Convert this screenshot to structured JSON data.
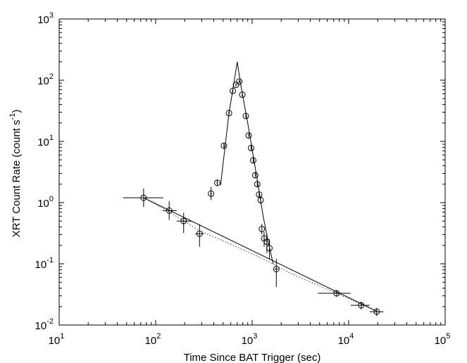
{
  "chart_data": {
    "type": "scatter",
    "title": "",
    "xlabel": "Time Since BAT Trigger (sec)",
    "ylabel": "XRT Count Rate (count s",
    "ylabel_sup": "-1",
    "ylabel_close": ")",
    "xscale": "log",
    "yscale": "log",
    "xlim": [
      10,
      100000
    ],
    "ylim": [
      0.01,
      1000
    ],
    "grid": false,
    "legend": "none",
    "x_ticks": [
      {
        "value": 10,
        "base": "10",
        "exp": "1"
      },
      {
        "value": 100,
        "base": "10",
        "exp": "2"
      },
      {
        "value": 1000,
        "base": "10",
        "exp": "3"
      },
      {
        "value": 10000,
        "base": "10",
        "exp": "4"
      },
      {
        "value": 100000,
        "base": "10",
        "exp": "5"
      }
    ],
    "y_ticks": [
      {
        "value": 0.01,
        "base": "10",
        "exp": "-2"
      },
      {
        "value": 0.1,
        "base": "10",
        "exp": "-1"
      },
      {
        "value": 1,
        "base": "10",
        "exp": "0"
      },
      {
        "value": 10,
        "base": "10",
        "exp": "1"
      },
      {
        "value": 100,
        "base": "10",
        "exp": "2"
      },
      {
        "value": 1000,
        "base": "10",
        "exp": "3"
      }
    ],
    "series": [
      {
        "marker": "circle-plus",
        "points": [
          {
            "x": 75,
            "y": 1.2,
            "xerr": [
              46,
              120
            ],
            "yerr": [
              0.85,
              1.7
            ]
          },
          {
            "x": 138,
            "y": 0.74,
            "xerr": [
              118,
              165
            ],
            "yerr": [
              0.52,
              1.05
            ]
          },
          {
            "x": 195,
            "y": 0.5,
            "xerr": [
              165,
              235
            ],
            "yerr": [
              0.32,
              0.68
            ]
          },
          {
            "x": 285,
            "y": 0.31,
            "xerr": [
              258,
              315
            ],
            "yerr": [
              0.19,
              0.44
            ]
          },
          {
            "x": 1780,
            "y": 0.082,
            "xerr": [
              1700,
              1870
            ],
            "yerr": [
              0.042,
              0.12
            ]
          },
          {
            "x": 7500,
            "y": 0.033,
            "xerr": [
              4800,
              10500
            ],
            "yerr": [
              0.029,
              0.037
            ]
          },
          {
            "x": 13500,
            "y": 0.021,
            "xerr": [
              10500,
              16500
            ],
            "yerr": [
              0.018,
              0.024
            ]
          },
          {
            "x": 19500,
            "y": 0.0165,
            "xerr": [
              16500,
              23000
            ],
            "yerr": [
              0.014,
              0.019
            ]
          }
        ]
      },
      {
        "marker": "circle-plus",
        "points": [
          {
            "x": 375,
            "y": 1.4,
            "xerr": [
              365,
              385
            ],
            "yerr": [
              1.1,
              1.8
            ]
          },
          {
            "x": 435,
            "y": 2.1,
            "xerr": [
              428,
              442
            ],
            "yerr": [
              1.9,
              2.4
            ]
          },
          {
            "x": 510,
            "y": 8.5,
            "xerr": [
              500,
              520
            ],
            "yerr": [
              7.8,
              9.3
            ]
          },
          {
            "x": 575,
            "y": 29,
            "xerr": [
              565,
              585
            ],
            "yerr": [
              27,
              31
            ]
          },
          {
            "x": 630,
            "y": 67,
            "xerr": [
              620,
              640
            ],
            "yerr": [
              63,
              71
            ]
          },
          {
            "x": 680,
            "y": 84,
            "xerr": [
              670,
              690
            ],
            "yerr": [
              79,
              89
            ]
          },
          {
            "x": 735,
            "y": 95,
            "xerr": [
              725,
              745
            ],
            "yerr": [
              90,
              100
            ]
          },
          {
            "x": 790,
            "y": 58,
            "xerr": [
              780,
              800
            ],
            "yerr": [
              54,
              62
            ]
          },
          {
            "x": 860,
            "y": 26,
            "xerr": [
              850,
              870
            ],
            "yerr": [
              24,
              28
            ]
          },
          {
            "x": 920,
            "y": 12.5,
            "xerr": [
              910,
              930
            ],
            "yerr": [
              11.5,
              13.5
            ]
          },
          {
            "x": 975,
            "y": 7.8,
            "xerr": [
              965,
              985
            ],
            "yerr": [
              7.1,
              8.5
            ]
          },
          {
            "x": 1025,
            "y": 4.9,
            "xerr": [
              1015,
              1035
            ],
            "yerr": [
              4.4,
              5.4
            ]
          },
          {
            "x": 1075,
            "y": 2.8,
            "xerr": [
              1065,
              1085
            ],
            "yerr": [
              2.5,
              3.1
            ]
          },
          {
            "x": 1130,
            "y": 2.0,
            "xerr": [
              1120,
              1140
            ],
            "yerr": [
              1.8,
              2.2
            ]
          },
          {
            "x": 1180,
            "y": 1.35,
            "xerr": [
              1170,
              1190
            ],
            "yerr": [
              1.2,
              1.5
            ]
          },
          {
            "x": 1225,
            "y": 1.1,
            "xerr": [
              1215,
              1235
            ],
            "yerr": [
              0.95,
              1.25
            ]
          },
          {
            "x": 1260,
            "y": 0.37,
            "xerr": [
              1250,
              1270
            ],
            "yerr": [
              0.3,
              0.45
            ]
          },
          {
            "x": 1330,
            "y": 0.26,
            "xerr": [
              1315,
              1345
            ],
            "yerr": [
              0.19,
              0.33
            ]
          },
          {
            "x": 1420,
            "y": 0.23,
            "xerr": [
              1405,
              1435
            ],
            "yerr": [
              0.15,
              0.31
            ]
          },
          {
            "x": 1510,
            "y": 0.18,
            "xerr": [
              1495,
              1525
            ],
            "yerr": [
              0.12,
              0.25
            ]
          }
        ]
      }
    ],
    "fit_lines": [
      {
        "style": "solid",
        "points": [
          [
            75,
            1.2
          ],
          [
            20000,
            0.0165
          ]
        ]
      },
      {
        "style": "solid",
        "points": [
          [
            470,
            1.9
          ],
          [
            575,
            29
          ],
          [
            660,
            110
          ],
          [
            700,
            200
          ],
          [
            760,
            85
          ],
          [
            900,
            20
          ],
          [
            1100,
            3.0
          ],
          [
            1300,
            0.6
          ],
          [
            1450,
            0.25
          ],
          [
            1650,
            0.1
          ]
        ]
      },
      {
        "style": "dotted",
        "points": [
          [
            75,
            1.2
          ],
          [
            140,
            0.7
          ],
          [
            280,
            0.35
          ],
          [
            600,
            0.21
          ],
          [
            1300,
            0.12
          ],
          [
            2500,
            0.07
          ],
          [
            7500,
            0.033
          ],
          [
            20000,
            0.0165
          ]
        ]
      }
    ]
  }
}
